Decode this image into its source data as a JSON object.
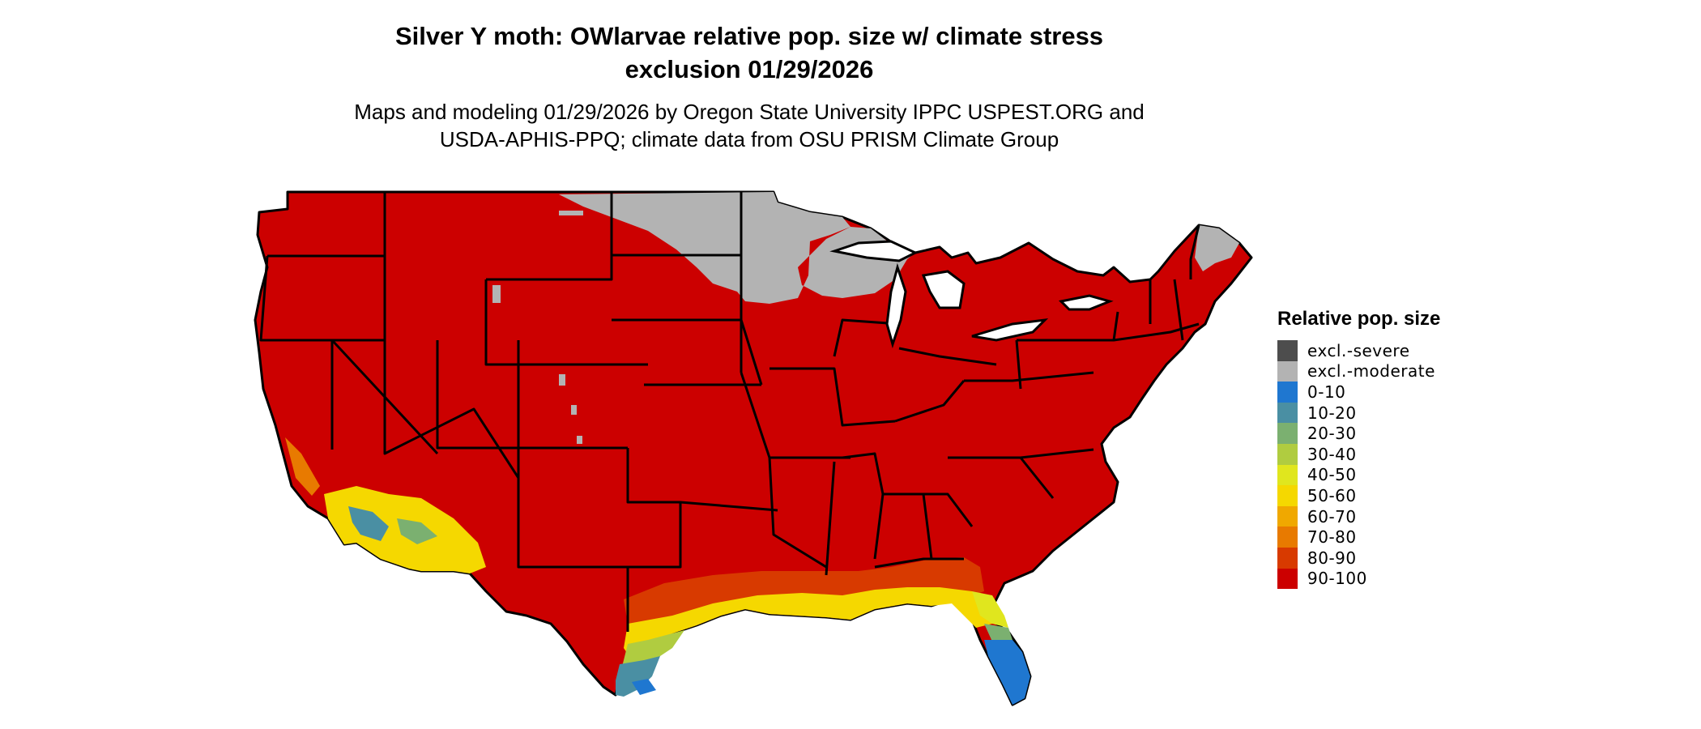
{
  "title": "Silver Y moth: OWlarvae relative pop. size w/ climate stress",
  "title_line2": "exclusion 01/29/2026",
  "subtitle": "Maps and modeling 01/29/2026 by Oregon State University IPPC USPEST.ORG and",
  "subtitle_line2": "USDA-APHIS-PPQ; climate data from OSU PRISM Climate Group",
  "legend": {
    "title": "Relative pop. size",
    "items": [
      {
        "label": "excl.-severe",
        "color": "#4d4d4d"
      },
      {
        "label": "excl.-moderate",
        "color": "#b3b3b3"
      },
      {
        "label": "0-10",
        "color": "#1f77d0"
      },
      {
        "label": "10-20",
        "color": "#4a8fa3"
      },
      {
        "label": "20-30",
        "color": "#7bb070"
      },
      {
        "label": "30-40",
        "color": "#b0cc40"
      },
      {
        "label": "40-50",
        "color": "#e0e61e"
      },
      {
        "label": "50-60",
        "color": "#f5d800"
      },
      {
        "label": "60-70",
        "color": "#f0a800"
      },
      {
        "label": "70-80",
        "color": "#e87a00"
      },
      {
        "label": "80-90",
        "color": "#d83a00"
      },
      {
        "label": "90-100",
        "color": "#cc0000"
      }
    ]
  }
}
